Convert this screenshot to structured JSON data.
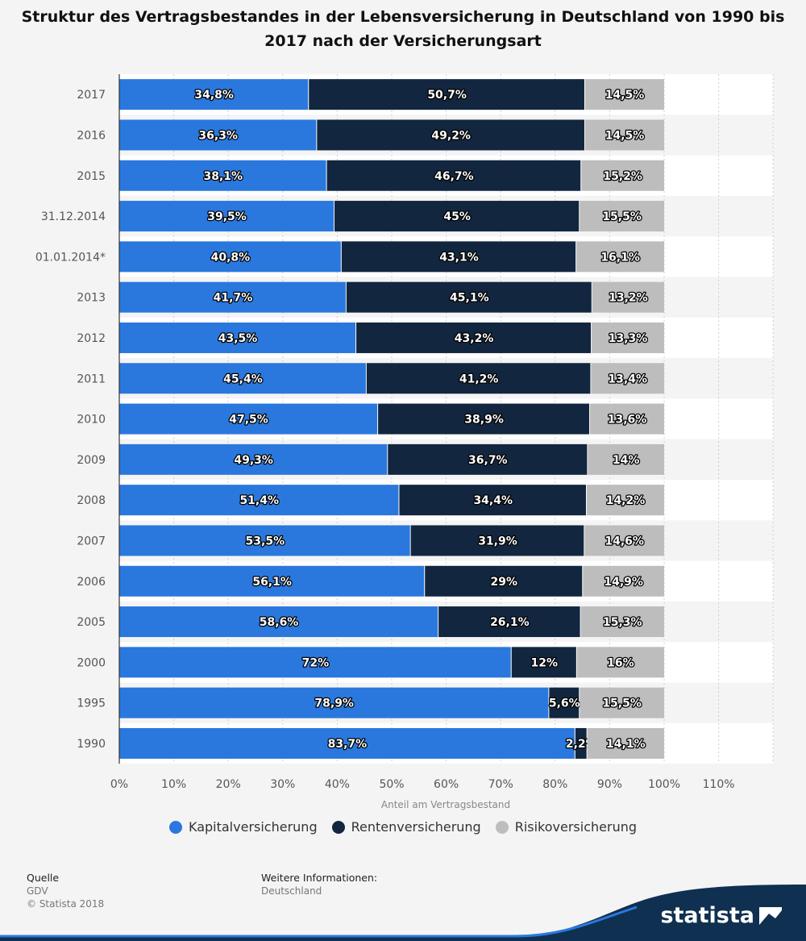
{
  "title": "Struktur des Vertragsbestandes in der Lebensversicherung in Deutschland von 1990 bis 2017 nach der Versicherungsart",
  "colors": {
    "kapital": "#2a78de",
    "renten": "#12263f",
    "risiko": "#bdbdbd",
    "background": "#f4f4f4",
    "brand": "#0f3050"
  },
  "legend": [
    {
      "label": "Kapitalversicherung",
      "color": "#2a78de"
    },
    {
      "label": "Rentenversicherung",
      "color": "#12263f"
    },
    {
      "label": "Risikoversicherung",
      "color": "#bdbdbd"
    }
  ],
  "footer": {
    "source_heading": "Quelle",
    "source": "GDV",
    "copyright": "© Statista 2018",
    "info_heading": "Weitere Informationen:",
    "info": "Deutschland"
  },
  "brand": "statista",
  "chart_data": {
    "type": "bar",
    "orientation": "horizontal",
    "stacked": true,
    "xlabel": "Anteil am Vertragsbestand",
    "ylabel": "",
    "xlim": [
      0,
      120
    ],
    "xticks": [
      "0%",
      "10%",
      "20%",
      "30%",
      "40%",
      "50%",
      "60%",
      "70%",
      "80%",
      "90%",
      "100%",
      "110%"
    ],
    "grid": true,
    "legend_position": "bottom",
    "categories": [
      "2017",
      "2016",
      "2015",
      "31.12.2014",
      "01.01.2014*",
      "2013",
      "2012",
      "2011",
      "2010",
      "2009",
      "2008",
      "2007",
      "2006",
      "2005",
      "2000",
      "1995",
      "1990"
    ],
    "series": [
      {
        "name": "Kapitalversicherung",
        "values": [
          34.8,
          36.3,
          38.1,
          39.5,
          40.8,
          41.7,
          43.5,
          45.4,
          47.5,
          49.3,
          51.4,
          53.5,
          56.1,
          58.6,
          72,
          78.9,
          83.7
        ],
        "labels": [
          "34,8%",
          "36,3%",
          "38,1%",
          "39,5%",
          "40,8%",
          "41,7%",
          "43,5%",
          "45,4%",
          "47,5%",
          "49,3%",
          "51,4%",
          "53,5%",
          "56,1%",
          "58,6%",
          "72%",
          "78,9%",
          "83,7%"
        ]
      },
      {
        "name": "Rentenversicherung",
        "values": [
          50.7,
          49.2,
          46.7,
          45,
          43.1,
          45.1,
          43.2,
          41.2,
          38.9,
          36.7,
          34.4,
          31.9,
          29,
          26.1,
          12,
          5.6,
          2.2
        ],
        "labels": [
          "50,7%",
          "49,2%",
          "46,7%",
          "45%",
          "43,1%",
          "45,1%",
          "43,2%",
          "41,2%",
          "38,9%",
          "36,7%",
          "34,4%",
          "31,9%",
          "29%",
          "26,1%",
          "12%",
          "5,6%",
          "2,2%"
        ]
      },
      {
        "name": "Risikoversicherung",
        "values": [
          14.5,
          14.5,
          15.2,
          15.5,
          16.1,
          13.2,
          13.3,
          13.4,
          13.6,
          14,
          14.2,
          14.6,
          14.9,
          15.3,
          16,
          15.5,
          14.1
        ],
        "labels": [
          "14,5%",
          "14,5%",
          "15,2%",
          "15,5%",
          "16,1%",
          "13,2%",
          "13,3%",
          "13,4%",
          "13,6%",
          "14%",
          "14,2%",
          "14,6%",
          "14,9%",
          "15,3%",
          "16%",
          "15,5%",
          "14,1%"
        ]
      }
    ]
  }
}
